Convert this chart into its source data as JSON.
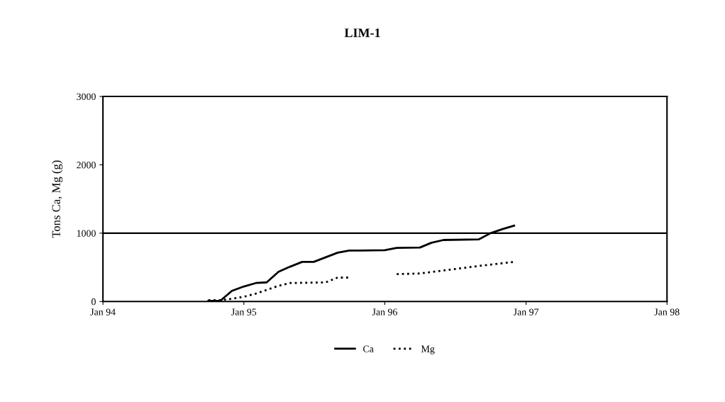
{
  "chart_data": {
    "type": "line",
    "title": "LIM-1",
    "ylabel": "Tons Ca, Mg (g)",
    "xlim": [
      "1994-01",
      "1998-01"
    ],
    "xticks": [
      {
        "value": "1994-01",
        "label": "Jan 94"
      },
      {
        "value": "1995-01",
        "label": "Jan 95"
      },
      {
        "value": "1996-01",
        "label": "Jan 96"
      },
      {
        "value": "1997-01",
        "label": "Jan 97"
      },
      {
        "value": "1998-01",
        "label": "Jan 98"
      }
    ],
    "ylim": [
      0,
      3000
    ],
    "yticks": [
      0,
      1000,
      2000,
      3000
    ],
    "grid": false,
    "legend": "bottom",
    "marker": "none",
    "ref_lines": [
      {
        "axis": "y",
        "value": 1000,
        "color": "#000000",
        "line_style": "solid"
      }
    ],
    "series": [
      {
        "name": "Ca",
        "color": "#000000",
        "line_style": "solid",
        "x": [
          "1994-10",
          "1994-11",
          "1994-12",
          "1995-01",
          "1995-02",
          "1995-03",
          "1995-04",
          "1995-05",
          "1995-06",
          "1995-07",
          "1995-09",
          "1995-10",
          "1996-01",
          "1996-02",
          "1996-04",
          "1996-05",
          "1996-06",
          "1996-09",
          "1996-10",
          "1996-11",
          "1996-12"
        ],
        "values": [
          10,
          10,
          155,
          220,
          270,
          280,
          435,
          510,
          580,
          580,
          715,
          745,
          750,
          785,
          790,
          860,
          900,
          910,
          1000,
          1060,
          1110
        ]
      },
      {
        "name": "Mg",
        "color": "#000000",
        "line_style": "dotted",
        "x": [
          "1994-10",
          "1994-11",
          "1994-12",
          "1995-01",
          "1995-02",
          "1995-04",
          "1995-05",
          "1995-08",
          "1995-09",
          "1995-10",
          "1995-12",
          "1996-02",
          "1996-04",
          "1996-09",
          "1996-12"
        ],
        "values": [
          20,
          20,
          40,
          70,
          115,
          230,
          270,
          280,
          350,
          350,
          null,
          400,
          410,
          520,
          580
        ]
      }
    ]
  }
}
